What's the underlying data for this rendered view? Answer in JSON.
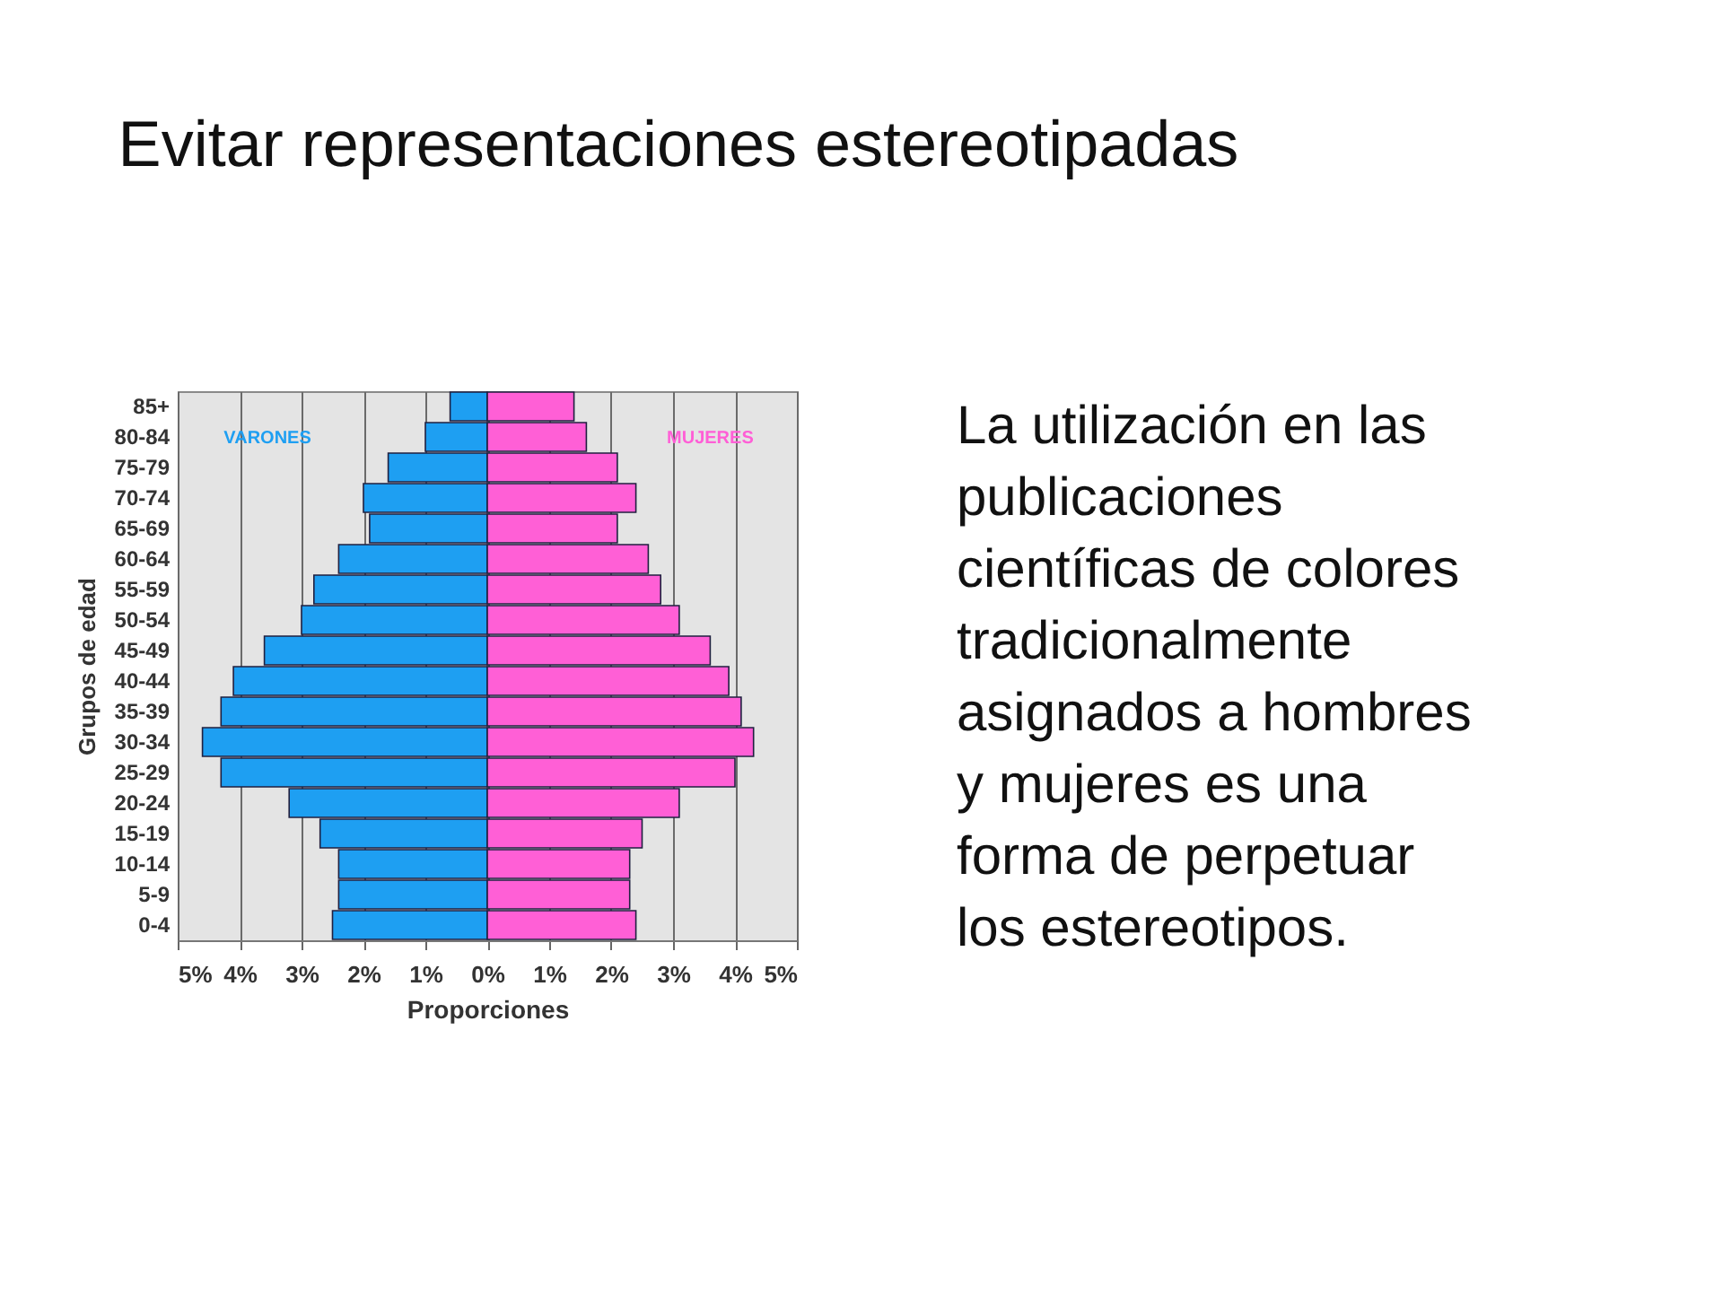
{
  "chart_data": {
    "type": "bar",
    "orientation": "horizontal",
    "stacked": true,
    "title": "Evitar representaciones estereotipadas",
    "xlabel": "Proporciones",
    "ylabel": "Grupos de edad",
    "categories": [
      "85+",
      "80-84",
      "75-79",
      "70-74",
      "65-69",
      "60-64",
      "55-59",
      "50-54",
      "45-49",
      "40-44",
      "35-39",
      "30-34",
      "25-29",
      "20-24",
      "15-19",
      "10-14",
      "5-9",
      "0-4"
    ],
    "series": [
      {
        "name": "VARONES",
        "color": "#1e9ff2",
        "values": [
          -0.6,
          -1.0,
          -1.6,
          -2.0,
          -1.9,
          -2.4,
          -2.8,
          -3.0,
          -3.6,
          -4.1,
          -4.3,
          -4.6,
          -4.3,
          -3.2,
          -2.7,
          -2.4,
          -2.4,
          -2.5
        ]
      },
      {
        "name": "MUJERES",
        "color": "#ff5fd6",
        "values": [
          1.4,
          1.6,
          2.1,
          2.4,
          2.1,
          2.6,
          2.8,
          3.1,
          3.6,
          3.9,
          4.1,
          4.3,
          4.0,
          3.1,
          2.5,
          2.3,
          2.3,
          2.4
        ]
      }
    ],
    "xlim": [
      -5,
      5
    ],
    "xticks": [
      {
        "value": -5,
        "label": "5%"
      },
      {
        "value": -4,
        "label": "4%"
      },
      {
        "value": -3,
        "label": "3%"
      },
      {
        "value": -2,
        "label": "2%"
      },
      {
        "value": -1,
        "label": "1%"
      },
      {
        "value": 0,
        "label": "0%"
      },
      {
        "value": 1,
        "label": "1%"
      },
      {
        "value": 2,
        "label": "2%"
      },
      {
        "value": 3,
        "label": "3%"
      },
      {
        "value": 4,
        "label": "4%"
      },
      {
        "value": 5,
        "label": "5%"
      }
    ],
    "grid": "x",
    "annotations": [
      "La utilización en las publicaciones científicas de colores tradicionalmente asignados a hombres y mujeres es una forma de perpetuar los estereotipos."
    ]
  }
}
